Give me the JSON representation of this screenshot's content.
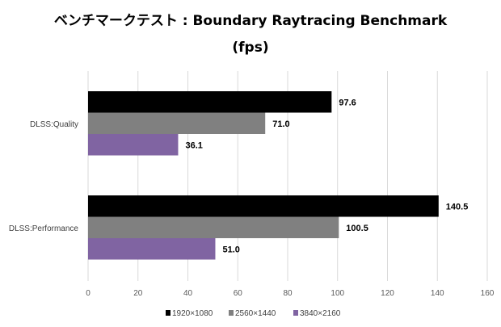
{
  "chart_data": {
    "type": "bar",
    "orientation": "horizontal",
    "title": "ベンチマークテスト : Boundary Raytracing Benchmark",
    "subtitle": "(fps)",
    "categories": [
      "DLSS:Quality",
      "DLSS:Performance"
    ],
    "series": [
      {
        "name": "1920x1080",
        "color": "#000000",
        "values": [
          97.6,
          140.5
        ],
        "labels": [
          "97.6",
          "140.5"
        ]
      },
      {
        "name": "2560x1440",
        "color": "#808080",
        "values": [
          71.0,
          100.5
        ],
        "labels": [
          "71.0",
          "100.5"
        ]
      },
      {
        "name": "3840x2160",
        "color": "#8064a2",
        "values": [
          36.1,
          51.0
        ],
        "labels": [
          "36.1",
          "51.0"
        ]
      }
    ],
    "xlim": [
      0,
      160
    ],
    "xticks": [
      0,
      20,
      40,
      60,
      80,
      100,
      120,
      140,
      160
    ],
    "grid": true,
    "legend": "bottom"
  }
}
